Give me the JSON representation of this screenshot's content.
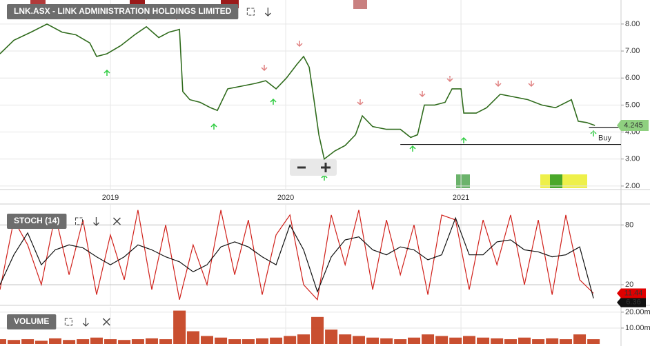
{
  "chart_data": [
    {
      "type": "line",
      "title": "LNK.ASX - LINK ADMINISTRATION HOLDINGS LIMITED",
      "color": "#2f6b1c",
      "ma_color": "#d0201a",
      "x": [
        2018.37,
        2018.449,
        2018.547,
        2018.638,
        2018.724,
        2018.803,
        2018.882,
        2018.921,
        2018.98,
        2019.059,
        2019.138,
        2019.205,
        2019.276,
        2019.335,
        2019.394,
        2019.413,
        2019.453,
        2019.512,
        2019.571,
        2019.61,
        2019.669,
        2019.748,
        2019.827,
        2019.886,
        2019.945,
        2020.004,
        2020.063,
        2020.102,
        2020.134,
        2020.161,
        2020.189,
        2020.22,
        2020.28,
        2020.339,
        2020.398,
        2020.437,
        2020.496,
        2020.575,
        2020.654,
        2020.713,
        2020.752,
        2020.791,
        2020.85,
        2020.909,
        2020.949,
        2021.0,
        2021.016,
        2021.087,
        2021.146,
        2021.224,
        2021.303,
        2021.382,
        2021.461,
        2021.539,
        2021.63,
        2021.669,
        2021.717,
        2021.764
      ],
      "values": [
        6.9,
        7.4,
        7.7,
        8.0,
        7.7,
        7.6,
        7.3,
        6.8,
        6.9,
        7.2,
        7.6,
        7.9,
        7.5,
        7.7,
        7.8,
        5.5,
        5.2,
        5.1,
        4.9,
        4.8,
        5.6,
        5.7,
        5.8,
        5.9,
        5.6,
        6.0,
        6.5,
        6.8,
        6.4,
        5.2,
        3.9,
        3.0,
        3.3,
        3.5,
        3.9,
        4.6,
        4.2,
        4.1,
        4.1,
        3.8,
        3.9,
        5.0,
        5.0,
        5.1,
        5.6,
        5.6,
        4.7,
        4.7,
        4.9,
        5.4,
        5.3,
        5.2,
        5.0,
        4.9,
        5.2,
        4.4,
        4.35,
        4.245
      ],
      "xlim": [
        2018.37,
        2021.913
      ],
      "xticks": [
        2019,
        2020,
        2021
      ],
      "ylim": [
        1.87,
        8.89
      ],
      "yticks": [
        {
          "value": 2,
          "label": "2.00"
        },
        {
          "value": 3,
          "label": "3.00"
        },
        {
          "value": 4,
          "label": "4.00"
        },
        {
          "value": 5,
          "label": "5.00"
        },
        {
          "value": 6,
          "label": "6.00"
        },
        {
          "value": 7,
          "label": "7.00"
        },
        {
          "value": 8,
          "label": "8.00"
        }
      ],
      "grid": true,
      "hlines": [
        {
          "value": 3.54,
          "from": 2020.654
        },
        {
          "value": 4.17,
          "from": 2021.73
        }
      ],
      "annotation": "Buy"
    },
    {
      "type": "line",
      "title": "STOCH (14)",
      "x": [
        2018.37,
        2018.449,
        2018.528,
        2018.606,
        2018.685,
        2018.764,
        2018.843,
        2018.921,
        2019.0,
        2019.079,
        2019.157,
        2019.236,
        2019.315,
        2019.394,
        2019.472,
        2019.551,
        2019.63,
        2019.709,
        2019.787,
        2019.866,
        2019.945,
        2020.024,
        2020.102,
        2020.181,
        2020.26,
        2020.339,
        2020.417,
        2020.496,
        2020.575,
        2020.654,
        2020.732,
        2020.811,
        2020.89,
        2020.969,
        2021.047,
        2021.126,
        2021.205,
        2021.283,
        2021.362,
        2021.441,
        2021.52,
        2021.598,
        2021.677,
        2021.756
      ],
      "series": [
        {
          "color": "#d0201a",
          "values": [
            15,
            85,
            60,
            20,
            90,
            30,
            85,
            10,
            70,
            25,
            95,
            15,
            80,
            5,
            60,
            20,
            95,
            30,
            85,
            10,
            70,
            90,
            20,
            5,
            90,
            40,
            95,
            15,
            85,
            30,
            80,
            10,
            90,
            85,
            15,
            85,
            40,
            90,
            20,
            85,
            10,
            90,
            25,
            11.44
          ]
        },
        {
          "color": "#111111",
          "values": [
            20,
            50,
            72,
            40,
            55,
            60,
            57,
            48,
            40,
            48,
            60,
            55,
            48,
            43,
            33,
            40,
            58,
            63,
            58,
            48,
            40,
            80,
            55,
            13,
            48,
            65,
            68,
            55,
            50,
            58,
            55,
            45,
            50,
            87,
            50,
            50,
            63,
            65,
            55,
            53,
            48,
            50,
            58,
            6.36
          ]
        }
      ],
      "xlim": [
        2018.37,
        2021.913
      ],
      "ylim": [
        0,
        101
      ],
      "yticks": [
        20,
        80
      ],
      "grid": true
    },
    {
      "type": "bar",
      "title": "VOLUME",
      "color": "#c0300c",
      "x": [
        2018.37,
        2018.449,
        2018.528,
        2018.606,
        2018.685,
        2018.764,
        2018.843,
        2018.921,
        2019.0,
        2019.079,
        2019.157,
        2019.236,
        2019.315,
        2019.394,
        2019.472,
        2019.551,
        2019.63,
        2019.709,
        2019.787,
        2019.866,
        2019.945,
        2020.024,
        2020.102,
        2020.181,
        2020.26,
        2020.339,
        2020.417,
        2020.496,
        2020.575,
        2020.654,
        2020.732,
        2020.811,
        2020.89,
        2020.969,
        2021.047,
        2021.126,
        2021.205,
        2021.283,
        2021.362,
        2021.441,
        2021.52,
        2021.598,
        2021.677,
        2021.756
      ],
      "values": [
        3000000,
        2500000,
        3000000,
        2000000,
        3500000,
        2500000,
        3000000,
        4000000,
        3000000,
        2500000,
        3000000,
        3500000,
        3000000,
        21000000,
        8000000,
        5000000,
        4000000,
        3000000,
        3000000,
        3500000,
        4000000,
        5000000,
        6000000,
        17000000,
        9000000,
        6000000,
        5000000,
        4000000,
        3500000,
        3000000,
        4000000,
        6000000,
        5000000,
        4000000,
        5000000,
        4000000,
        3500000,
        3000000,
        4000000,
        3000000,
        3500000,
        3000000,
        6000000,
        3000000
      ],
      "xlim": [
        2018.37,
        2021.913
      ],
      "ylim": [
        0,
        23000000
      ],
      "yticks": [
        {
          "value": 10000000,
          "label": "10.00m"
        },
        {
          "value": 20000000,
          "label": "20.00m"
        }
      ],
      "grid": true
    }
  ]
}
